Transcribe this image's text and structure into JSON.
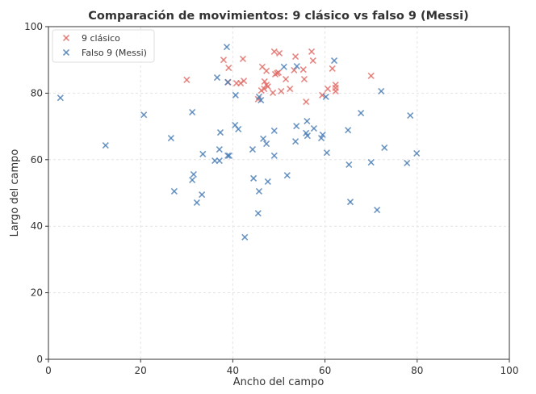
{
  "chart_data": {
    "type": "scatter",
    "title": "Comparación de movimientos: 9 clásico vs falso 9 (Messi)",
    "xlabel": "Ancho del campo",
    "ylabel": "Largo del campo",
    "xlim": [
      0,
      100
    ],
    "ylim": [
      0,
      100
    ],
    "xticks": [
      0,
      20,
      40,
      60,
      80,
      100
    ],
    "yticks": [
      0,
      20,
      40,
      60,
      80,
      100
    ],
    "grid": true,
    "legend_position": "top-left",
    "marker": "x",
    "series": [
      {
        "name": "9 clásico",
        "color": "#e06c66",
        "points": [
          [
            30,
            84
          ],
          [
            38,
            90
          ],
          [
            39.1,
            87.6
          ],
          [
            42.2,
            90.3
          ],
          [
            40.8,
            83
          ],
          [
            41.7,
            83
          ],
          [
            42.4,
            83.7
          ],
          [
            39,
            83.3
          ],
          [
            46.4,
            87.9
          ],
          [
            47.3,
            86.7
          ],
          [
            46.9,
            83.5
          ],
          [
            47.3,
            82.5
          ],
          [
            46.8,
            81.3
          ],
          [
            47.6,
            82
          ],
          [
            46.2,
            80.8
          ],
          [
            48.7,
            80.1
          ],
          [
            49,
            92.5
          ],
          [
            50.1,
            92
          ],
          [
            49.2,
            85.7
          ],
          [
            49.9,
            86.2
          ],
          [
            49.6,
            86
          ],
          [
            51.5,
            84.2
          ],
          [
            50.5,
            80.6
          ],
          [
            52.4,
            81.3
          ],
          [
            53.6,
            91
          ],
          [
            53.3,
            86.9
          ],
          [
            55.3,
            87.1
          ],
          [
            55.5,
            84.2
          ],
          [
            57.1,
            92.5
          ],
          [
            57.4,
            89.8
          ],
          [
            55.9,
            77.4
          ],
          [
            59.4,
            79.4
          ],
          [
            61.6,
            87.4
          ],
          [
            60.6,
            81.3
          ],
          [
            62.3,
            82.5
          ],
          [
            62.3,
            81.6
          ],
          [
            62.3,
            80.6
          ],
          [
            70,
            85.2
          ],
          [
            45.5,
            78.2
          ]
        ]
      },
      {
        "name": "Falso 9 (Messi)",
        "color": "#4a7db5",
        "points": [
          [
            2.6,
            78.6
          ],
          [
            12.4,
            64.3
          ],
          [
            20.7,
            73.5
          ],
          [
            26.6,
            66.5
          ],
          [
            27.3,
            50.5
          ],
          [
            31.2,
            74.3
          ],
          [
            31.5,
            55.6
          ],
          [
            31.2,
            53.9
          ],
          [
            32.2,
            47.1
          ],
          [
            33.3,
            49.5
          ],
          [
            33.5,
            61.7
          ],
          [
            36.6,
            84.7
          ],
          [
            37.3,
            68.2
          ],
          [
            37.1,
            63.1
          ],
          [
            36.1,
            59.7
          ],
          [
            37.1,
            59.7
          ],
          [
            38.7,
            93.9
          ],
          [
            38.9,
            83.3
          ],
          [
            38.9,
            61.2
          ],
          [
            39.2,
            61.2
          ],
          [
            40.6,
            79.4
          ],
          [
            40.5,
            70.4
          ],
          [
            41.2,
            69.2
          ],
          [
            42.6,
            36.7
          ],
          [
            44.3,
            63.1
          ],
          [
            44.5,
            54.4
          ],
          [
            45.7,
            50.5
          ],
          [
            45.5,
            43.9
          ],
          [
            45.7,
            78.9
          ],
          [
            46.1,
            77.9
          ],
          [
            46.6,
            66.3
          ],
          [
            47.3,
            64.8
          ],
          [
            47.6,
            53.4
          ],
          [
            49,
            68.7
          ],
          [
            49,
            61.2
          ],
          [
            51.1,
            87.9
          ],
          [
            51.8,
            55.3
          ],
          [
            53.8,
            70.1
          ],
          [
            53.9,
            88.1
          ],
          [
            53.6,
            65.5
          ],
          [
            56.1,
            71.6
          ],
          [
            55.9,
            68
          ],
          [
            56.2,
            67.2
          ],
          [
            57.6,
            69.4
          ],
          [
            59.5,
            67.5
          ],
          [
            59.2,
            66.5
          ],
          [
            60.2,
            78.9
          ],
          [
            60.4,
            62.1
          ],
          [
            62,
            89.8
          ],
          [
            65,
            68.9
          ],
          [
            65.2,
            58.5
          ],
          [
            65.5,
            47.3
          ],
          [
            67.8,
            74
          ],
          [
            70,
            59.2
          ],
          [
            72.2,
            80.6
          ],
          [
            72.9,
            63.6
          ],
          [
            71.3,
            44.9
          ],
          [
            77.8,
            59
          ],
          [
            78.5,
            73.3
          ],
          [
            79.9,
            61.9
          ]
        ]
      }
    ]
  }
}
